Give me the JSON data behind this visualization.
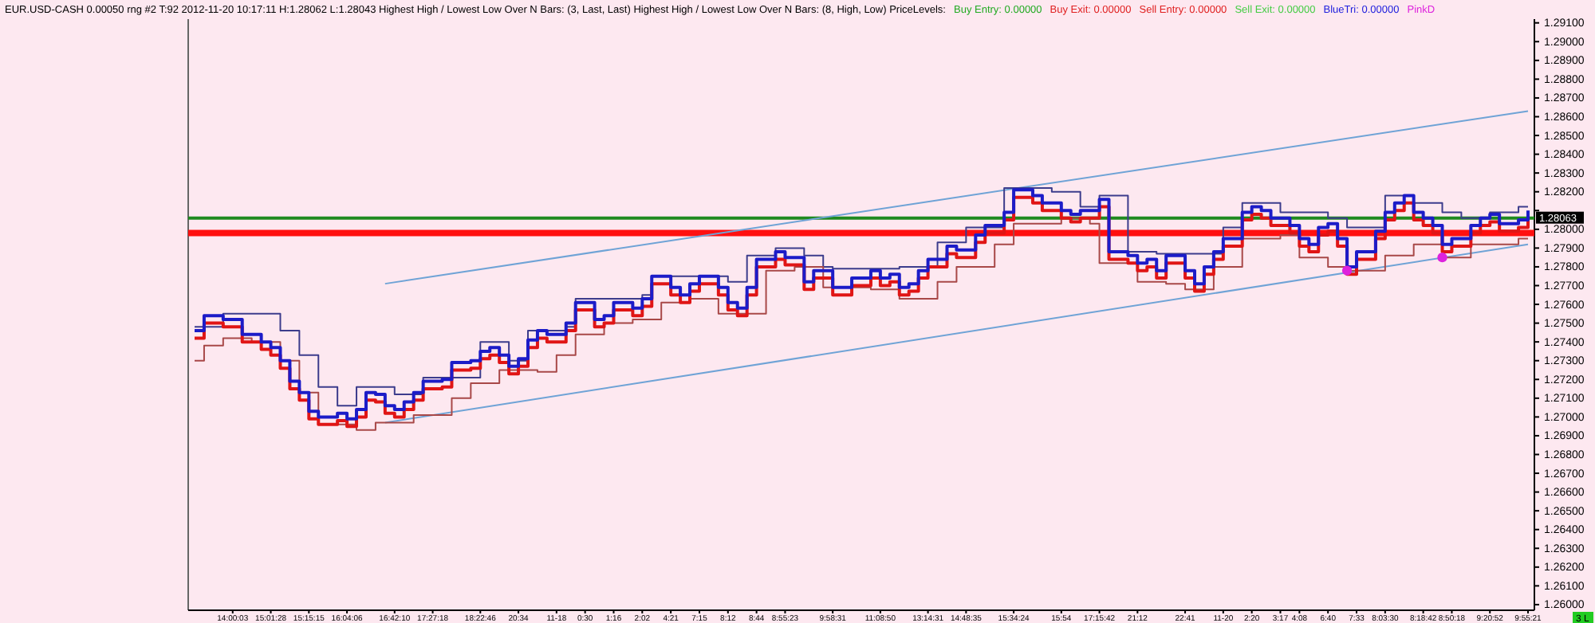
{
  "chart_data": {
    "type": "step",
    "title": "EUR.USD-CASH 0.00050 rng #2 T:92 2012-11-20 10:17:11 H:1.28062 L:1.28043  Highest High / Lowest Low Over N Bars:  (3, Last, Last)  Highest High / Lowest Low Over N Bars:  (8, High, Low)  PriceLevels:",
    "annotations": [
      "Buy Entry: 0.00000",
      "Buy Exit: 0.00000",
      "Sell Entry: 0.00000",
      "Sell Exit: 0.00000",
      "BlueTri: 0.00000",
      "PinkD",
      {
        "text": "3 L"
      },
      {
        "text": "1.28063"
      }
    ],
    "categories": [
      null,
      null,
      null,
      null,
      "14:00:03",
      null,
      null,
      null,
      "15:01:28",
      null,
      null,
      null,
      "15:15:15",
      null,
      null,
      null,
      "16:04:06",
      null,
      null,
      null,
      null,
      "16:42:10",
      null,
      null,
      null,
      "17:27:18",
      null,
      null,
      null,
      null,
      "18:22:46",
      null,
      null,
      null,
      "20:34",
      null,
      null,
      null,
      "11-18",
      null,
      null,
      "0:30",
      null,
      null,
      "1:16",
      null,
      null,
      "2:02",
      null,
      null,
      "4:21",
      null,
      null,
      "7:15",
      null,
      null,
      "8:12",
      null,
      null,
      "8:44",
      null,
      null,
      "8:55:23",
      null,
      null,
      null,
      null,
      "9:58:31",
      null,
      null,
      null,
      null,
      "11:08:50",
      null,
      null,
      null,
      null,
      "13:14:31",
      null,
      null,
      null,
      "14:48:35",
      null,
      null,
      null,
      null,
      "15:34:24",
      null,
      null,
      null,
      null,
      "15:54",
      null,
      null,
      null,
      "17:15:42",
      null,
      null,
      null,
      "21:12",
      null,
      null,
      null,
      null,
      "22:41",
      null,
      null,
      null,
      "11-20",
      null,
      null,
      "2:20",
      null,
      null,
      "3:17",
      null,
      "4:08",
      null,
      null,
      "6:40",
      null,
      null,
      "7:33",
      null,
      null,
      "8:03:30",
      null,
      null,
      null,
      "8:18:42",
      null,
      null,
      "8:50:18",
      null,
      null,
      null,
      "9:20:52",
      null,
      null,
      null,
      "9:55:21"
    ],
    "ylim": [
      1.2597,
      1.2912
    ],
    "yticks": [
      {
        "value": 1.26,
        "label": "1.26000"
      },
      {
        "value": 1.261,
        "label": "1.26100"
      },
      {
        "value": 1.262,
        "label": "1.26200"
      },
      {
        "value": 1.263,
        "label": "1.26300"
      },
      {
        "value": 1.264,
        "label": "1.26400"
      },
      {
        "value": 1.265,
        "label": "1.26500"
      },
      {
        "value": 1.266,
        "label": "1.26600"
      },
      {
        "value": 1.267,
        "label": "1.26700"
      },
      {
        "value": 1.268,
        "label": "1.26800"
      },
      {
        "value": 1.269,
        "label": "1.26900"
      },
      {
        "value": 1.27,
        "label": "1.27000"
      },
      {
        "value": 1.271,
        "label": "1.27100"
      },
      {
        "value": 1.272,
        "label": "1.27200"
      },
      {
        "value": 1.273,
        "label": "1.27300"
      },
      {
        "value": 1.274,
        "label": "1.27400"
      },
      {
        "value": 1.275,
        "label": "1.27500"
      },
      {
        "value": 1.276,
        "label": "1.27600"
      },
      {
        "value": 1.277,
        "label": "1.27700"
      },
      {
        "value": 1.278,
        "label": "1.27800"
      },
      {
        "value": 1.279,
        "label": "1.27900"
      },
      {
        "value": 1.28,
        "label": "1.28000"
      },
      {
        "value": 1.281,
        "label": null
      },
      {
        "value": 1.282,
        "label": "1.28200"
      },
      {
        "value": 1.283,
        "label": "1.28300"
      },
      {
        "value": 1.284,
        "label": "1.28400"
      },
      {
        "value": 1.285,
        "label": "1.28500"
      },
      {
        "value": 1.286,
        "label": "1.28600"
      },
      {
        "value": 1.287,
        "label": "1.28700"
      },
      {
        "value": 1.288,
        "label": "1.28800"
      },
      {
        "value": 1.289,
        "label": "1.28900"
      },
      {
        "value": 1.29,
        "label": "1.29000"
      },
      {
        "value": 1.291,
        "label": "1.29100"
      }
    ],
    "ref_lines": [
      {
        "axis": "y",
        "value": 1.2806,
        "color": "#1f8a1f"
      },
      {
        "axis": "y",
        "value": 1.2798,
        "color": "#ff1010"
      }
    ],
    "series": [
      {
        "type": "line",
        "color": "#6fa3d6",
        "values": [
          null,
          null,
          null,
          null,
          null,
          null,
          null,
          null,
          null,
          null,
          null,
          null,
          null,
          null,
          null,
          null,
          null,
          null,
          null,
          null,
          1.2771,
          null,
          null,
          null,
          null,
          null,
          null,
          null,
          null,
          null,
          null,
          null,
          null,
          null,
          null,
          null,
          null,
          null,
          null,
          null,
          null,
          null,
          null,
          null,
          null,
          null,
          null,
          null,
          null,
          null,
          null,
          null,
          null,
          null,
          null,
          null,
          null,
          null,
          null,
          null,
          null,
          null,
          null,
          null,
          null,
          null,
          null,
          null,
          null,
          null,
          null,
          null,
          null,
          null,
          null,
          null,
          null,
          null,
          null,
          null,
          null,
          null,
          null,
          null,
          null,
          null,
          null,
          null,
          null,
          null,
          null,
          null,
          null,
          null,
          null,
          null,
          null,
          null,
          null,
          null,
          null,
          null,
          null,
          null,
          null,
          null,
          null,
          null,
          null,
          null,
          null,
          null,
          null,
          null,
          null,
          null,
          null,
          null,
          null,
          null,
          null,
          null,
          null,
          null,
          null,
          null,
          null,
          null,
          null,
          null,
          null,
          null,
          null,
          null,
          null,
          null,
          null,
          null,
          null,
          null,
          1.2863
        ]
      },
      {
        "type": "line",
        "color": "#6fa3d6",
        "values": [
          null,
          null,
          null,
          null,
          null,
          null,
          null,
          null,
          null,
          null,
          null,
          null,
          null,
          null,
          null,
          null,
          null,
          null,
          null,
          null,
          1.2697,
          null,
          null,
          null,
          null,
          null,
          null,
          null,
          null,
          null,
          null,
          null,
          null,
          null,
          null,
          null,
          null,
          null,
          null,
          null,
          null,
          null,
          null,
          null,
          null,
          null,
          null,
          null,
          null,
          null,
          null,
          null,
          null,
          null,
          null,
          null,
          null,
          null,
          null,
          null,
          null,
          null,
          null,
          null,
          null,
          null,
          null,
          null,
          null,
          null,
          null,
          null,
          null,
          null,
          null,
          null,
          null,
          null,
          null,
          null,
          null,
          null,
          null,
          null,
          null,
          null,
          null,
          null,
          null,
          null,
          null,
          null,
          null,
          null,
          null,
          null,
          null,
          null,
          null,
          null,
          null,
          null,
          null,
          null,
          null,
          null,
          null,
          null,
          null,
          null,
          null,
          null,
          null,
          null,
          null,
          null,
          null,
          null,
          null,
          null,
          null,
          null,
          null,
          null,
          null,
          null,
          null,
          null,
          null,
          null,
          null,
          null,
          null,
          null,
          null,
          null,
          null,
          null,
          null,
          null,
          1.2792
        ]
      },
      {
        "color": "#3c3c8c",
        "values": [
          1.2748,
          1.2748,
          1.2748,
          1.2755,
          1.2755,
          1.2755,
          1.2755,
          1.2755,
          1.2755,
          1.2746,
          1.2746,
          1.2733,
          1.2733,
          1.2716,
          1.2716,
          1.2706,
          1.2706,
          1.2716,
          1.2716,
          1.2716,
          1.2716,
          1.2712,
          1.2712,
          1.2712,
          1.2721,
          1.2721,
          1.2721,
          1.2721,
          1.2721,
          1.2721,
          1.274,
          1.274,
          1.274,
          1.273,
          1.273,
          1.2746,
          1.2746,
          1.2746,
          1.2746,
          1.2748,
          1.2763,
          1.2763,
          1.2763,
          1.2763,
          1.2763,
          1.2763,
          1.2763,
          1.2765,
          1.2775,
          1.2775,
          1.2775,
          1.2775,
          1.2775,
          1.2775,
          1.2775,
          1.2775,
          1.2772,
          1.2772,
          1.2786,
          1.2786,
          1.2786,
          1.279,
          1.279,
          1.279,
          1.2786,
          1.2786,
          1.278,
          1.2779,
          1.2779,
          1.2779,
          1.2779,
          1.2779,
          1.2779,
          1.2779,
          1.278,
          1.278,
          1.278,
          1.278,
          1.2793,
          1.2793,
          1.2793,
          1.2801,
          1.2801,
          1.2801,
          1.2801,
          1.2822,
          1.2822,
          1.2822,
          1.2822,
          1.2822,
          1.282,
          1.282,
          1.282,
          1.2812,
          1.2812,
          1.2818,
          1.2818,
          1.2818,
          1.2788,
          1.2788,
          1.2788,
          1.2787,
          1.2787,
          1.2787,
          1.2787,
          1.2787,
          1.2787,
          1.2787,
          1.2801,
          1.2801,
          1.2814,
          1.2814,
          1.2814,
          1.2814,
          1.2809,
          1.2809,
          1.2809,
          1.2809,
          1.2809,
          1.2806,
          1.2806,
          1.2801,
          1.2801,
          1.2801,
          1.2801,
          1.2818,
          1.2818,
          1.2818,
          1.2814,
          1.2814,
          1.2814,
          1.2809,
          1.2809,
          1.2806,
          1.2806,
          1.2806,
          1.2809,
          1.2809,
          1.2809,
          1.2812,
          1.2812
        ]
      },
      {
        "color": "#a84848",
        "values": [
          1.273,
          1.2738,
          1.2738,
          1.2742,
          1.2742,
          1.2742,
          1.274,
          1.274,
          1.274,
          1.273,
          1.273,
          1.2713,
          1.2713,
          1.2696,
          1.2696,
          1.2696,
          1.2696,
          1.2693,
          1.2693,
          1.2697,
          1.2697,
          1.2697,
          1.2697,
          1.2701,
          1.2701,
          1.2701,
          1.2701,
          1.271,
          1.271,
          1.2718,
          1.2718,
          1.2718,
          1.2725,
          1.2725,
          1.2725,
          1.2725,
          1.2724,
          1.2724,
          1.2733,
          1.2733,
          1.2744,
          1.2744,
          1.2744,
          1.275,
          1.275,
          1.275,
          1.2752,
          1.2752,
          1.2752,
          1.2761,
          1.2761,
          1.2761,
          1.2763,
          1.2763,
          1.2763,
          1.2755,
          1.2755,
          1.2755,
          1.2755,
          1.2755,
          1.2778,
          1.2778,
          1.2778,
          1.278,
          1.278,
          1.278,
          1.2769,
          1.2769,
          1.2769,
          1.2769,
          1.2769,
          1.2768,
          1.2768,
          1.2768,
          1.2763,
          1.2763,
          1.2763,
          1.2763,
          1.2772,
          1.2772,
          1.278,
          1.278,
          1.278,
          1.278,
          1.2792,
          1.2792,
          1.2803,
          1.2803,
          1.2803,
          1.2803,
          1.2803,
          1.2806,
          1.2806,
          1.2806,
          1.2803,
          1.2782,
          1.2782,
          1.2782,
          1.2782,
          1.2772,
          1.2772,
          1.2772,
          1.2771,
          1.2771,
          1.2768,
          1.2768,
          1.2768,
          1.278,
          1.278,
          1.278,
          1.2795,
          1.2795,
          1.2795,
          1.2795,
          1.2797,
          1.2797,
          1.2785,
          1.2785,
          1.2785,
          1.278,
          1.278,
          1.2778,
          1.2778,
          1.2778,
          1.2778,
          1.2786,
          1.2786,
          1.2786,
          1.2792,
          1.2792,
          1.2792,
          1.2785,
          1.2785,
          1.2785,
          1.2792,
          1.2792,
          1.2792,
          1.2792,
          1.2792,
          1.2795,
          1.2795
        ]
      },
      {
        "color": "#e01515",
        "values": [
          1.2742,
          1.275,
          1.275,
          1.2748,
          1.2748,
          1.274,
          1.274,
          1.2736,
          1.2733,
          1.2726,
          1.2715,
          1.2709,
          1.2699,
          1.2696,
          1.2696,
          1.2698,
          1.2695,
          1.27,
          1.2709,
          1.2708,
          1.2702,
          1.27,
          1.2704,
          1.2709,
          1.2715,
          1.2715,
          1.2716,
          1.2725,
          1.2725,
          1.2726,
          1.2731,
          1.2733,
          1.2729,
          1.2723,
          1.2727,
          1.2737,
          1.2742,
          1.274,
          1.274,
          1.2746,
          1.2757,
          1.2757,
          1.2748,
          1.275,
          1.2757,
          1.2757,
          1.2754,
          1.2759,
          1.2771,
          1.2771,
          1.2765,
          1.2761,
          1.2767,
          1.2771,
          1.2771,
          1.2765,
          1.2757,
          1.2754,
          1.2765,
          1.278,
          1.278,
          1.2784,
          1.2781,
          1.2781,
          1.2768,
          1.2774,
          1.2774,
          1.2765,
          1.2765,
          1.277,
          1.277,
          1.2774,
          1.277,
          1.2772,
          1.2765,
          1.2767,
          1.2774,
          1.278,
          1.278,
          1.2787,
          1.2785,
          1.2785,
          1.2793,
          1.2798,
          1.2798,
          1.2805,
          1.2817,
          1.2817,
          1.2814,
          1.281,
          1.281,
          1.2806,
          1.2804,
          1.2806,
          1.2806,
          1.2812,
          1.2784,
          1.2784,
          1.2782,
          1.2778,
          1.278,
          1.2774,
          1.2782,
          1.2782,
          1.2774,
          1.2767,
          1.2776,
          1.2784,
          1.2791,
          1.2791,
          1.2805,
          1.2808,
          1.2806,
          1.2802,
          1.2802,
          1.2798,
          1.2791,
          1.2788,
          1.2797,
          1.2799,
          1.2791,
          1.2776,
          1.2784,
          1.2784,
          1.2795,
          1.2805,
          1.281,
          1.2814,
          1.2805,
          1.2802,
          1.2798,
          1.2788,
          1.2791,
          1.2791,
          1.2798,
          1.2802,
          1.2804,
          1.2799,
          1.2799,
          1.2801,
          1.2806
        ]
      },
      {
        "color": "#1c1cc8",
        "values": [
          1.2746,
          1.2754,
          1.2754,
          1.2752,
          1.2752,
          1.2744,
          1.2744,
          1.274,
          1.2737,
          1.273,
          1.2719,
          1.2713,
          1.2703,
          1.27,
          1.27,
          1.2702,
          1.2699,
          1.2704,
          1.2713,
          1.2712,
          1.2706,
          1.2704,
          1.2708,
          1.2713,
          1.2719,
          1.2719,
          1.272,
          1.2729,
          1.2729,
          1.273,
          1.2735,
          1.2737,
          1.2733,
          1.2727,
          1.2731,
          1.2741,
          1.2746,
          1.2744,
          1.2744,
          1.275,
          1.2761,
          1.2761,
          1.2752,
          1.2754,
          1.2761,
          1.2761,
          1.2758,
          1.2763,
          1.2775,
          1.2775,
          1.2769,
          1.2765,
          1.2771,
          1.2775,
          1.2775,
          1.2769,
          1.2761,
          1.2758,
          1.2769,
          1.2784,
          1.2784,
          1.2788,
          1.2785,
          1.2785,
          1.2772,
          1.2778,
          1.2778,
          1.2769,
          1.2769,
          1.2774,
          1.2774,
          1.2778,
          1.2774,
          1.2776,
          1.2769,
          1.2771,
          1.2778,
          1.2784,
          1.2784,
          1.2791,
          1.2789,
          1.2789,
          1.2797,
          1.2802,
          1.2802,
          1.2809,
          1.2821,
          1.2821,
          1.2818,
          1.2814,
          1.2814,
          1.281,
          1.2808,
          1.281,
          1.281,
          1.2816,
          1.2788,
          1.2788,
          1.2786,
          1.2782,
          1.2784,
          1.2778,
          1.2786,
          1.2786,
          1.2778,
          1.2771,
          1.278,
          1.2788,
          1.2795,
          1.2795,
          1.2809,
          1.2812,
          1.281,
          1.2806,
          1.2806,
          1.2802,
          1.2795,
          1.2792,
          1.2801,
          1.2803,
          1.2795,
          1.278,
          1.2788,
          1.2788,
          1.2799,
          1.2809,
          1.2814,
          1.2818,
          1.2809,
          1.2806,
          1.2802,
          1.2792,
          1.2795,
          1.2795,
          1.2802,
          1.2806,
          1.2808,
          1.2803,
          1.2803,
          1.2805,
          1.281
        ]
      },
      {
        "type": "scatter",
        "color": "#dd22dd",
        "marker": "circle",
        "values": [
          null,
          null,
          null,
          null,
          null,
          null,
          null,
          null,
          null,
          null,
          null,
          null,
          null,
          null,
          null,
          null,
          null,
          null,
          null,
          null,
          null,
          null,
          null,
          null,
          null,
          null,
          null,
          null,
          null,
          null,
          null,
          null,
          null,
          null,
          null,
          null,
          null,
          null,
          null,
          null,
          null,
          null,
          null,
          null,
          null,
          null,
          null,
          null,
          null,
          null,
          null,
          null,
          null,
          null,
          null,
          null,
          null,
          null,
          null,
          null,
          null,
          null,
          null,
          null,
          null,
          null,
          null,
          null,
          null,
          null,
          null,
          null,
          null,
          null,
          null,
          null,
          null,
          null,
          null,
          null,
          null,
          null,
          null,
          null,
          null,
          null,
          null,
          null,
          null,
          null,
          null,
          null,
          null,
          null,
          null,
          null,
          null,
          null,
          null,
          null,
          null,
          null,
          null,
          null,
          null,
          null,
          null,
          null,
          null,
          null,
          null,
          null,
          null,
          null,
          null,
          null,
          null,
          null,
          null,
          null,
          null,
          1.2778,
          null,
          null,
          null,
          null,
          null,
          null,
          null,
          null,
          null,
          1.2785,
          null,
          null,
          null,
          null,
          null,
          null,
          null,
          null,
          null
        ]
      }
    ]
  }
}
